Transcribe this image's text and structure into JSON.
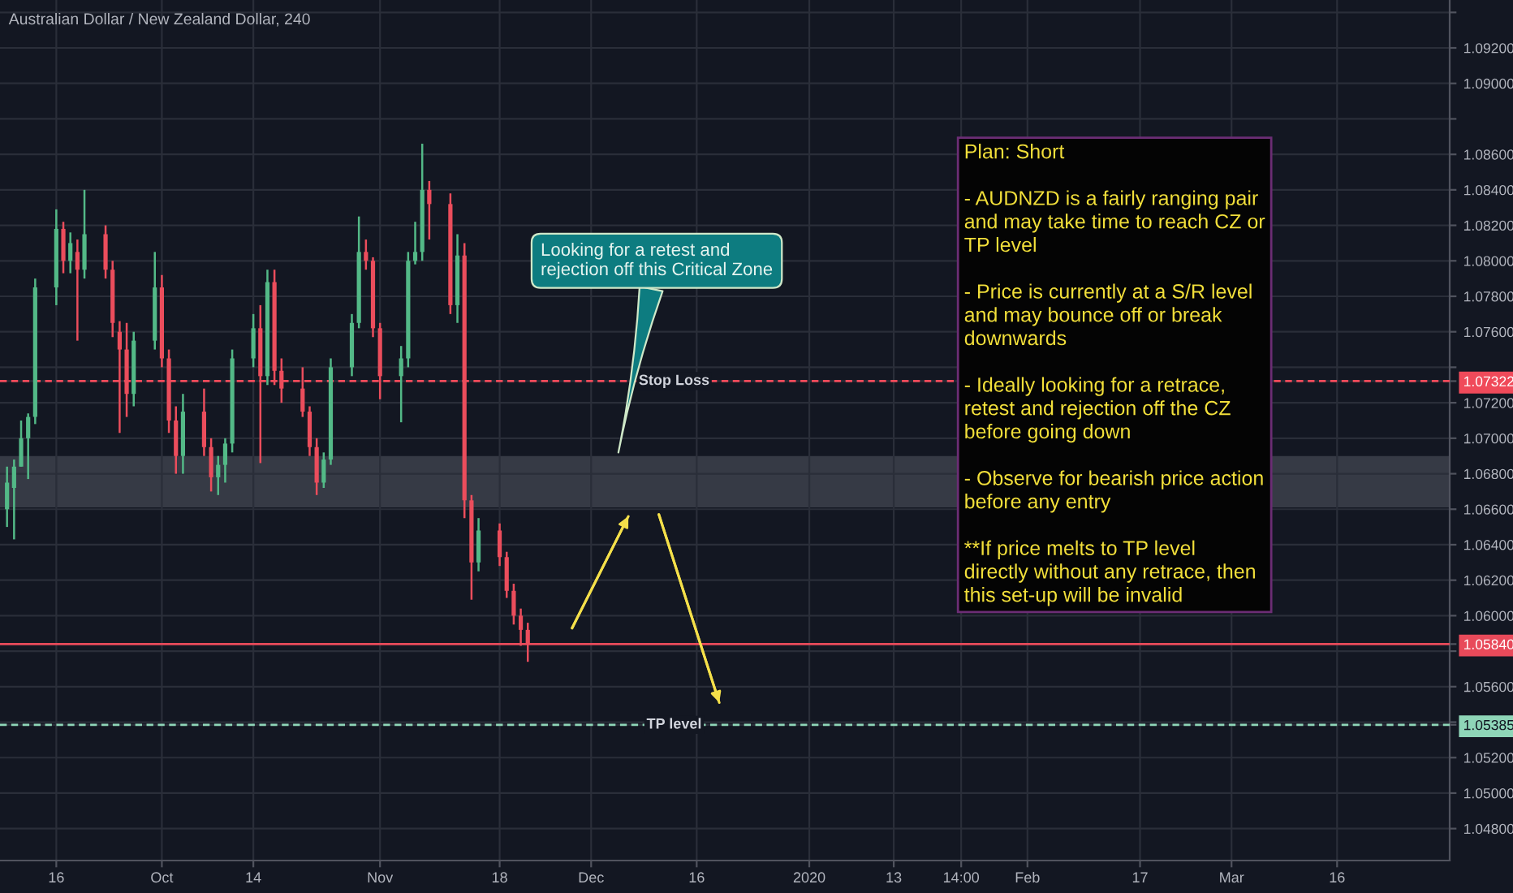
{
  "chart_data": {
    "type": "candlestick",
    "title": "Australian Dollar / New Zealand Dollar, 240",
    "x": [
      "2019-09-09",
      "2019-09-10",
      "2019-09-11",
      "2019-09-12",
      "2019-09-13",
      "2019-09-16",
      "2019-09-17",
      "2019-09-18",
      "2019-09-19",
      "2019-09-20",
      "2019-09-23",
      "2019-09-24",
      "2019-09-25",
      "2019-09-26",
      "2019-09-27",
      "2019-09-30",
      "2019-10-01",
      "2019-10-02",
      "2019-10-03",
      "2019-10-04",
      "2019-10-07",
      "2019-10-08",
      "2019-10-09",
      "2019-10-10",
      "2019-10-11",
      "2019-10-14",
      "2019-10-15",
      "2019-10-16",
      "2019-10-17",
      "2019-10-18",
      "2019-10-21",
      "2019-10-22",
      "2019-10-23",
      "2019-10-24",
      "2019-10-25",
      "2019-10-28",
      "2019-10-29",
      "2019-10-30",
      "2019-10-31",
      "2019-11-01",
      "2019-11-04",
      "2019-11-05",
      "2019-11-06",
      "2019-11-07",
      "2019-11-08",
      "2019-11-11",
      "2019-11-12",
      "2019-11-13",
      "2019-11-14",
      "2019-11-15",
      "2019-11-18",
      "2019-11-19",
      "2019-11-20",
      "2019-11-21",
      "2019-11-22"
    ],
    "ohlc": [
      [
        1.066,
        1.0684,
        1.065,
        1.0675
      ],
      [
        1.0672,
        1.0688,
        1.0643,
        1.0684
      ],
      [
        1.0684,
        1.071,
        1.0684,
        1.07
      ],
      [
        1.07,
        1.0714,
        1.0677,
        1.0712
      ],
      [
        1.0712,
        1.079,
        1.0708,
        1.0785
      ],
      [
        1.0785,
        1.0829,
        1.0775,
        1.0818
      ],
      [
        1.0818,
        1.0822,
        1.0793,
        1.08
      ],
      [
        1.08,
        1.0816,
        1.0793,
        1.081
      ],
      [
        1.0805,
        1.0812,
        1.0755,
        1.0795
      ],
      [
        1.0795,
        1.084,
        1.079,
        1.0815
      ],
      [
        1.0815,
        1.082,
        1.079,
        1.0795
      ],
      [
        1.0795,
        1.08,
        1.0757,
        1.0765
      ],
      [
        1.076,
        1.0766,
        1.0703,
        1.075
      ],
      [
        1.075,
        1.0765,
        1.0712,
        1.0725
      ],
      [
        1.0725,
        1.076,
        1.0718,
        1.0755
      ],
      [
        1.0755,
        1.0805,
        1.075,
        1.0785
      ],
      [
        1.0785,
        1.0792,
        1.074,
        1.0745
      ],
      [
        1.0745,
        1.075,
        1.0703,
        1.071
      ],
      [
        1.071,
        1.0718,
        1.068,
        1.069
      ],
      [
        1.069,
        1.0725,
        1.068,
        1.0715
      ],
      [
        1.0715,
        1.0728,
        1.069,
        1.0695
      ],
      [
        1.0695,
        1.07,
        1.067,
        1.0678
      ],
      [
        1.0678,
        1.069,
        1.0668,
        1.0685
      ],
      [
        1.0685,
        1.07,
        1.0675,
        1.0697
      ],
      [
        1.0697,
        1.075,
        1.0692,
        1.0745
      ],
      [
        1.0745,
        1.077,
        1.074,
        1.0762
      ],
      [
        1.0762,
        1.0775,
        1.0686,
        1.0735
      ],
      [
        1.0735,
        1.0795,
        1.073,
        1.0788
      ],
      [
        1.0788,
        1.0795,
        1.073,
        1.0738
      ],
      [
        1.0738,
        1.0745,
        1.072,
        1.0728
      ],
      [
        1.0728,
        1.074,
        1.0712,
        1.0715
      ],
      [
        1.0715,
        1.0718,
        1.069,
        1.0695
      ],
      [
        1.0695,
        1.07,
        1.0668,
        1.0675
      ],
      [
        1.0675,
        1.0692,
        1.0672,
        1.0688
      ],
      [
        1.0688,
        1.0745,
        1.0685,
        1.074
      ],
      [
        1.074,
        1.077,
        1.0735,
        1.0765
      ],
      [
        1.0765,
        1.0825,
        1.0762,
        1.0805
      ],
      [
        1.0805,
        1.0812,
        1.0795,
        1.08
      ],
      [
        1.08,
        1.0802,
        1.0757,
        1.0762
      ],
      [
        1.0762,
        1.0765,
        1.0722,
        1.0735
      ],
      [
        1.0735,
        1.0752,
        1.0709,
        1.0745
      ],
      [
        1.0745,
        1.0805,
        1.074,
        1.08
      ],
      [
        1.08,
        1.0822,
        1.0798,
        1.0805
      ],
      [
        1.0805,
        1.0866,
        1.08,
        1.084
      ],
      [
        1.084,
        1.0845,
        1.0812,
        1.0832
      ],
      [
        1.0832,
        1.0838,
        1.077,
        1.0775
      ],
      [
        1.0775,
        1.0815,
        1.0765,
        1.0803
      ],
      [
        1.0803,
        1.081,
        1.0655,
        1.0665
      ],
      [
        1.0665,
        1.0668,
        1.0609,
        1.063
      ],
      [
        1.063,
        1.0655,
        1.0625,
        1.0648
      ],
      [
        1.0648,
        1.0652,
        1.0628,
        1.0633
      ],
      [
        1.0633,
        1.0636,
        1.061,
        1.0614
      ],
      [
        1.0614,
        1.0618,
        1.0595,
        1.06
      ],
      [
        1.06,
        1.0604,
        1.0583,
        1.0592
      ],
      [
        1.0592,
        1.0596,
        1.0574,
        1.0584
      ]
    ],
    "colors": [
      "#53b987",
      "#53b987",
      "#53b987",
      "#53b987",
      "#53b987",
      "#53b987",
      "#eb4d5c",
      "#53b987",
      "#eb4d5c",
      "#53b987",
      "#eb4d5c",
      "#eb4d5c",
      "#eb4d5c",
      "#eb4d5c",
      "#53b987",
      "#53b987",
      "#eb4d5c",
      "#eb4d5c",
      "#eb4d5c",
      "#53b987",
      "#eb4d5c",
      "#eb4d5c",
      "#53b987",
      "#53b987",
      "#53b987",
      "#53b987",
      "#eb4d5c",
      "#53b987",
      "#eb4d5c",
      "#eb4d5c",
      "#eb4d5c",
      "#eb4d5c",
      "#eb4d5c",
      "#53b987",
      "#53b987",
      "#53b987",
      "#53b987",
      "#eb4d5c",
      "#eb4d5c",
      "#eb4d5c",
      "#53b987",
      "#53b987",
      "#53b987",
      "#53b987",
      "#eb4d5c",
      "#eb4d5c",
      "#53b987",
      "#eb4d5c",
      "#eb4d5c",
      "#53b987",
      "#eb4d5c",
      "#eb4d5c",
      "#eb4d5c",
      "#eb4d5c",
      "#eb4d5c"
    ],
    "series": [
      {
        "type": "line",
        "color": "#f5e04a",
        "x": [
          "2019-11-28T07:00",
          "2019-12-06T07:00",
          "2019-12-08T00:00",
          "2019-12-10T15:00",
          "2019-12-19T05:00"
        ],
        "values": [
          1.0593,
          1.0656,
          null,
          1.0657,
          1.0551
        ]
      }
    ],
    "xlim": [
      "2019-09-08",
      "2020-04-01"
    ],
    "xticks": [
      {
        "value": "2019-09-16",
        "label": "16"
      },
      {
        "value": "2019-10-01",
        "label": "Oct"
      },
      {
        "value": "2019-10-14",
        "label": "14"
      },
      {
        "value": "2019-11-01",
        "label": "Nov"
      },
      {
        "value": "2019-11-18",
        "label": "18"
      },
      {
        "value": "2019-12-01",
        "label": "Dec"
      },
      {
        "value": "2019-12-16",
        "label": "16"
      },
      {
        "value": "2020-01-01",
        "label": "2020"
      },
      {
        "value": "2020-01-13",
        "label": "13"
      },
      {
        "value": "2020-01-22T14:00",
        "label": "14:00"
      },
      {
        "value": "2020-02-01",
        "label": "Feb"
      },
      {
        "value": "2020-02-17",
        "label": "17"
      },
      {
        "value": "2020-03-01",
        "label": "Mar"
      },
      {
        "value": "2020-03-16",
        "label": "16"
      }
    ],
    "ylim": [
      1.0462,
      1.0947
    ],
    "yticks": [
      {
        "value": 1.048,
        "label": "1.04800"
      },
      {
        "value": 1.05,
        "label": "1.05000"
      },
      {
        "value": 1.052,
        "label": "1.05200"
      },
      {
        "value": 1.054,
        "label": null
      },
      {
        "value": 1.05385,
        "label": "1.05385"
      },
      {
        "value": 1.056,
        "label": "1.05600"
      },
      {
        "value": 1.058,
        "label": null
      },
      {
        "value": 1.0584,
        "label": "1.05840"
      },
      {
        "value": 1.06,
        "label": "1.06000"
      },
      {
        "value": 1.062,
        "label": "1.06200"
      },
      {
        "value": 1.064,
        "label": "1.06400"
      },
      {
        "value": 1.066,
        "label": "1.06600"
      },
      {
        "value": 1.068,
        "label": "1.06800"
      },
      {
        "value": 1.07,
        "label": "1.07000"
      },
      {
        "value": 1.072,
        "label": "1.07200"
      },
      {
        "value": 1.07322,
        "label": "1.07322"
      },
      {
        "value": 1.074,
        "label": null
      },
      {
        "value": 1.076,
        "label": "1.07600"
      },
      {
        "value": 1.078,
        "label": "1.07800"
      },
      {
        "value": 1.08,
        "label": "1.08000"
      },
      {
        "value": 1.082,
        "label": "1.08200"
      },
      {
        "value": 1.084,
        "label": "1.08400"
      },
      {
        "value": 1.086,
        "label": "1.08600"
      },
      {
        "value": 1.088,
        "label": null
      },
      {
        "value": 1.09,
        "label": "1.09000"
      },
      {
        "value": 1.092,
        "label": "1.09200"
      },
      {
        "value": 1.094,
        "label": null
      }
    ],
    "grid": true,
    "ref_lines": [
      {
        "axis": "y",
        "value": 1.07322,
        "label": "Stop Loss",
        "color": "#f04a5a",
        "line_style": "dashed"
      },
      {
        "axis": "y",
        "value": 1.0584,
        "color": "#e84a5a",
        "line_style": "solid"
      },
      {
        "axis": "y",
        "value": 1.05385,
        "label": "TP level",
        "color": "#8fd6b8",
        "line_style": "dashed"
      }
    ],
    "bands": [
      {
        "axis": "y",
        "from": 1.0661,
        "to": 1.069,
        "color": "#363a45"
      }
    ],
    "annotations": [
      {
        "text": "Looking for a retest and\nrejection off this Critical Zone",
        "x": "2019-12-04T21:00",
        "y": 1.0692
      },
      "Plan: Short\n\n- AUDNZD is a fairly ranging pair\nand may take time to reach CZ or\nTP level\n\n- Price is currently at a S/R level\nand may bounce off or break\ndownwards\n\n- Ideally looking for a retrace,\nretest and rejection off the CZ\nbefore going down\n\n- Observe for bearish price action\nbefore any entry\n\n**If price melts to TP level\ndirectly without any retrace, then\nthis set-up will be invalid"
    ]
  }
}
